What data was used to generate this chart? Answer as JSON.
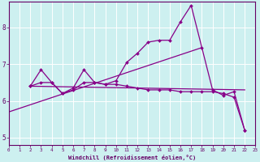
{
  "xlabel": "Windchill (Refroidissement éolien,°C)",
  "background_color": "#cdf0f0",
  "line_color": "#880088",
  "grid_color": "#ffffff",
  "xlim": [
    0,
    23
  ],
  "ylim": [
    4.8,
    8.7
  ],
  "yticks": [
    5,
    6,
    7,
    8
  ],
  "xticks": [
    0,
    1,
    2,
    3,
    4,
    5,
    6,
    7,
    8,
    9,
    10,
    11,
    12,
    13,
    14,
    15,
    16,
    17,
    18,
    19,
    20,
    21,
    22,
    23
  ],
  "lines": [
    {
      "x": [
        2,
        3,
        4,
        5,
        6,
        7,
        8,
        9,
        10,
        11,
        12,
        13,
        14,
        15,
        16,
        17,
        18,
        19,
        20,
        21,
        22
      ],
      "y": [
        6.4,
        6.85,
        6.5,
        6.2,
        6.35,
        6.85,
        6.5,
        6.45,
        6.55,
        7.05,
        7.3,
        7.6,
        7.65,
        7.65,
        8.15,
        8.6,
        7.45,
        6.3,
        6.15,
        6.25,
        5.2
      ],
      "markers": true
    },
    {
      "x": [
        2,
        3,
        4,
        5,
        6,
        7,
        8,
        9,
        10,
        11,
        12,
        13,
        14,
        15,
        16,
        17,
        18,
        19,
        20,
        21,
        22
      ],
      "y": [
        6.4,
        6.5,
        6.5,
        6.2,
        6.3,
        6.5,
        6.5,
        6.45,
        6.45,
        6.4,
        6.35,
        6.3,
        6.3,
        6.3,
        6.25,
        6.25,
        6.25,
        6.25,
        6.2,
        6.1,
        5.2
      ],
      "markers": true
    },
    {
      "x": [
        0,
        18
      ],
      "y": [
        5.7,
        7.45
      ],
      "markers": false
    },
    {
      "x": [
        2,
        22
      ],
      "y": [
        6.4,
        6.3
      ],
      "markers": false
    }
  ]
}
